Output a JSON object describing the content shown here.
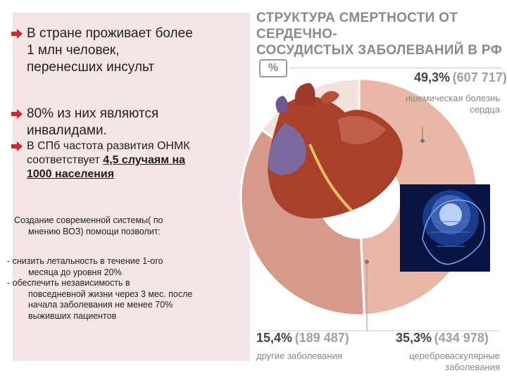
{
  "bullets": [
    {
      "line1": "В стране проживает более",
      "line2": "1 млн человек,",
      "line3": "перенесших инсульт"
    },
    {
      "line1": "80% из них являются",
      "line2": "инвалидами."
    },
    {
      "line1": "В  СПб частота развития ОНМК",
      "line2a": "соответствует ",
      "line2b": "4,5 случаям на",
      "line3": "1000 населения"
    }
  ],
  "note": {
    "line1": "Создание современной системы( по",
    "line2": "мнению ВОЗ) помощи позволит:"
  },
  "list": [
    {
      "line1": "-  снизить летальность в течение  1-ого",
      "line2": "месяца до уровня 20%"
    },
    {
      "line1": "- обеспечить независимость в",
      "line2": "повседневной жизни через 3 мес. после",
      "line3": "начала заболевания не менее 70%",
      "line4": "выживших пациентов"
    }
  ],
  "chart_title": {
    "line1": "СТРУКТУРА СМЕРТНОСТИ ОТ СЕРДЕЧНО-",
    "line2": "СОСУДИСТЫХ ЗАБОЛЕВАНИЙ В РФ"
  },
  "unit_label": "%",
  "chart_data": {
    "type": "pie",
    "title": "СТРУКТУРА СМЕРТНОСТИ ОТ СЕРДЕЧНО-СОСУДИСТЫХ ЗАБОЛЕВАНИЙ В РФ",
    "slices": [
      {
        "label_line1": "ишемическая болезнь",
        "label_line2": "сердца",
        "percent_text": "49,3%",
        "count_text": "(607 717)",
        "value": 49.3,
        "color": "#e9b7a8"
      },
      {
        "label_line1": "цереброваскулярные",
        "label_line2": "заболевания",
        "percent_text": "35,3%",
        "count_text": "(434 978)",
        "value": 35.3,
        "color": "#d59a8a"
      },
      {
        "label_line1": "другие заболевания",
        "label_line2": "",
        "percent_text": "15,4%",
        "count_text": "(189 487)",
        "value": 15.4,
        "color": "#f4e2dc"
      }
    ]
  },
  "colors": {
    "panel": "#f4e6e6",
    "arrow": "#d6262a",
    "title": "#8a8a8a"
  },
  "icons": {
    "bullet": "red-arrow-icon",
    "heart": "heart-illustration",
    "brain": "brain-illustration"
  }
}
